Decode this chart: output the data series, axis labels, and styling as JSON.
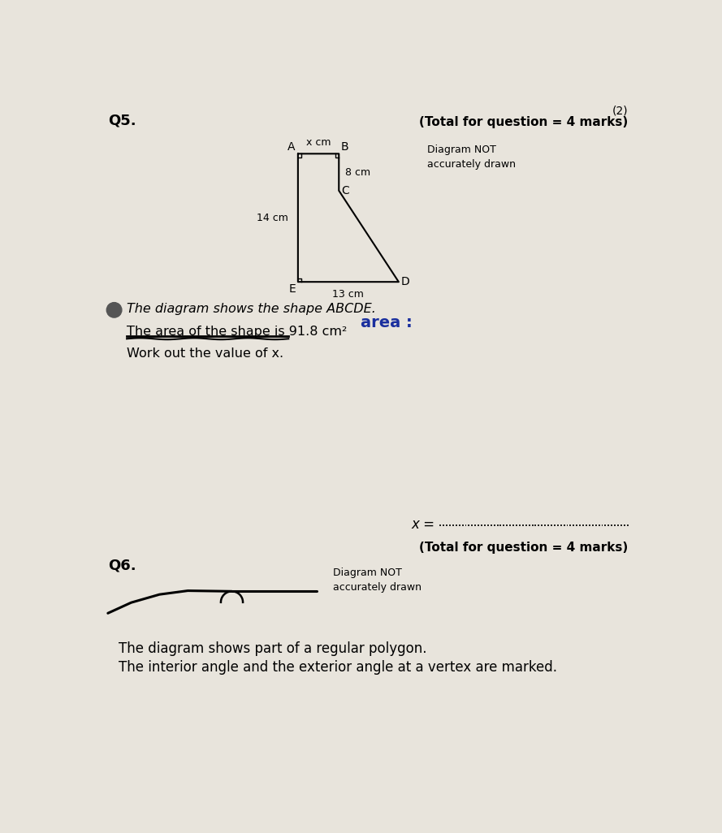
{
  "bg_color": "#e8e4dc",
  "header_number": "(2)",
  "header_total": "(Total for question = 4 marks)",
  "q5_label": "Q5.",
  "diagram_note": "Diagram NOT\naccurately drawn",
  "shape_label": "The diagram shows the shape ABCDE.",
  "area_handwritten": "area :",
  "area_text": "The area of the shape is 91.8 cm²",
  "work_out_text": "Work out the value of x.",
  "x_answer_line": "x = ",
  "total_q5": "(Total for question = 4 marks)",
  "q6_label": "Q6.",
  "diagram_note2": "Diagram NOT\naccurately drawn",
  "polygon_text1": "The diagram shows part of a regular polygon.",
  "polygon_text2": "The interior angle and the exterior angle at a vertex are marked.",
  "dim_xcm": "x cm",
  "dim_8cm": "8 cm",
  "dim_14cm": "14 cm",
  "dim_13cm": "13 cm",
  "shape_ox": 3.3,
  "shape_oy": 7.35,
  "shape_sw": 1.6,
  "shape_sh": 2.05,
  "shape_xf": 0.65,
  "shape_h8f": 0.59
}
